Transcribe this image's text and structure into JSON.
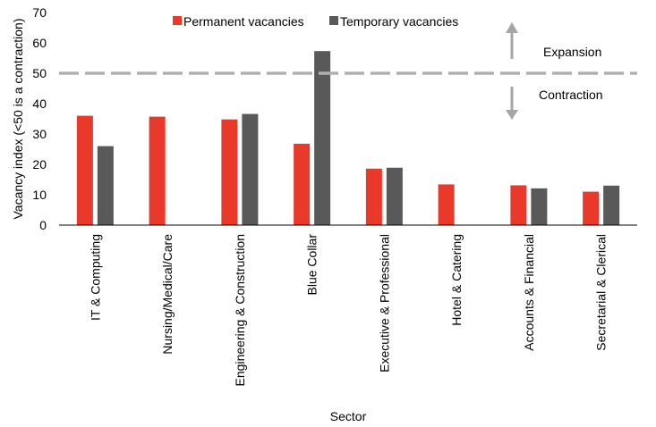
{
  "chart_data": {
    "type": "bar",
    "categories": [
      "IT & Computing",
      "Nursing/Medical/Care",
      "Engineering & Construction",
      "Blue Collar",
      "Executive & Professional",
      "Hotel & Catering",
      "Accounts & Financial",
      "Secretarial & Clerical"
    ],
    "series": [
      {
        "name": "Permanent vacancies",
        "color": "#e8392b",
        "values": [
          36.0,
          35.7,
          34.8,
          26.8,
          18.6,
          13.4,
          13.1,
          11.0
        ]
      },
      {
        "name": "Temporary vacancies",
        "color": "#595959",
        "values": [
          26.0,
          null,
          36.6,
          57.3,
          18.9,
          null,
          12.1,
          13.0
        ]
      }
    ],
    "xlabel": "Sector",
    "ylabel": "Vacancy index (<50 is a contraction)",
    "ylim": [
      0,
      70
    ],
    "yticks": [
      "0",
      "10",
      "20",
      "30",
      "40",
      "50",
      "60",
      "70"
    ],
    "reference_line": {
      "value": 50,
      "style": "dashed",
      "color": "#b0b0b0"
    },
    "annotations": {
      "up": "Expansion",
      "down": "Contraction"
    },
    "grid": false,
    "legend": "top-center"
  }
}
